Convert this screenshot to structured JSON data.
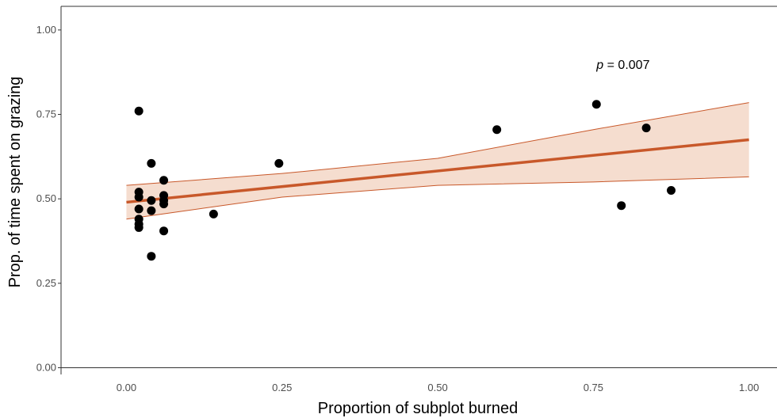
{
  "chart_data": {
    "type": "scatter",
    "title": "",
    "xlabel": "Proportion of subplot burned",
    "ylabel": "Prop. of time spent on grazing",
    "xlim": [
      -0.105,
      1.045
    ],
    "ylim": [
      -0.02,
      1.07
    ],
    "x_ticks": [
      0.0,
      0.25,
      0.5,
      0.75,
      1.0
    ],
    "x_tick_labels": [
      "0.00",
      "0.25",
      "0.50",
      "0.75",
      "1.00"
    ],
    "y_ticks": [
      0.0,
      0.25,
      0.5,
      0.75,
      1.0
    ],
    "y_tick_labels": [
      "0.00",
      "0.25",
      "0.50",
      "0.75",
      "1.00"
    ],
    "grid": false,
    "annotation": {
      "italic": "p",
      "text": " = 0.007",
      "x": 0.755,
      "y": 0.885
    },
    "points": [
      {
        "x": 0.02,
        "y": 0.76
      },
      {
        "x": 0.02,
        "y": 0.52
      },
      {
        "x": 0.02,
        "y": 0.505
      },
      {
        "x": 0.02,
        "y": 0.47
      },
      {
        "x": 0.02,
        "y": 0.44
      },
      {
        "x": 0.02,
        "y": 0.425
      },
      {
        "x": 0.02,
        "y": 0.415
      },
      {
        "x": 0.04,
        "y": 0.605
      },
      {
        "x": 0.04,
        "y": 0.495
      },
      {
        "x": 0.04,
        "y": 0.465
      },
      {
        "x": 0.04,
        "y": 0.33
      },
      {
        "x": 0.06,
        "y": 0.555
      },
      {
        "x": 0.06,
        "y": 0.51
      },
      {
        "x": 0.06,
        "y": 0.495
      },
      {
        "x": 0.06,
        "y": 0.485
      },
      {
        "x": 0.06,
        "y": 0.405
      },
      {
        "x": 0.14,
        "y": 0.455
      },
      {
        "x": 0.245,
        "y": 0.605
      },
      {
        "x": 0.595,
        "y": 0.705
      },
      {
        "x": 0.755,
        "y": 0.78
      },
      {
        "x": 0.795,
        "y": 0.48
      },
      {
        "x": 0.835,
        "y": 0.71
      },
      {
        "x": 0.875,
        "y": 0.525
      }
    ],
    "fit_line": {
      "x": [
        0.0,
        1.0
      ],
      "y": [
        0.49,
        0.675
      ]
    },
    "confidence_band": {
      "x": [
        0.0,
        0.25,
        0.5,
        0.75,
        1.0
      ],
      "upper": [
        0.54,
        0.575,
        0.62,
        0.705,
        0.785
      ],
      "lower": [
        0.44,
        0.505,
        0.54,
        0.55,
        0.565
      ]
    },
    "colors": {
      "points": "#000000",
      "fit_line": "#c8582a",
      "band_fill": "#f5ddcf",
      "band_edge": "#c8582a",
      "axis": "#333333",
      "tick_label": "#4d4d4d"
    }
  }
}
